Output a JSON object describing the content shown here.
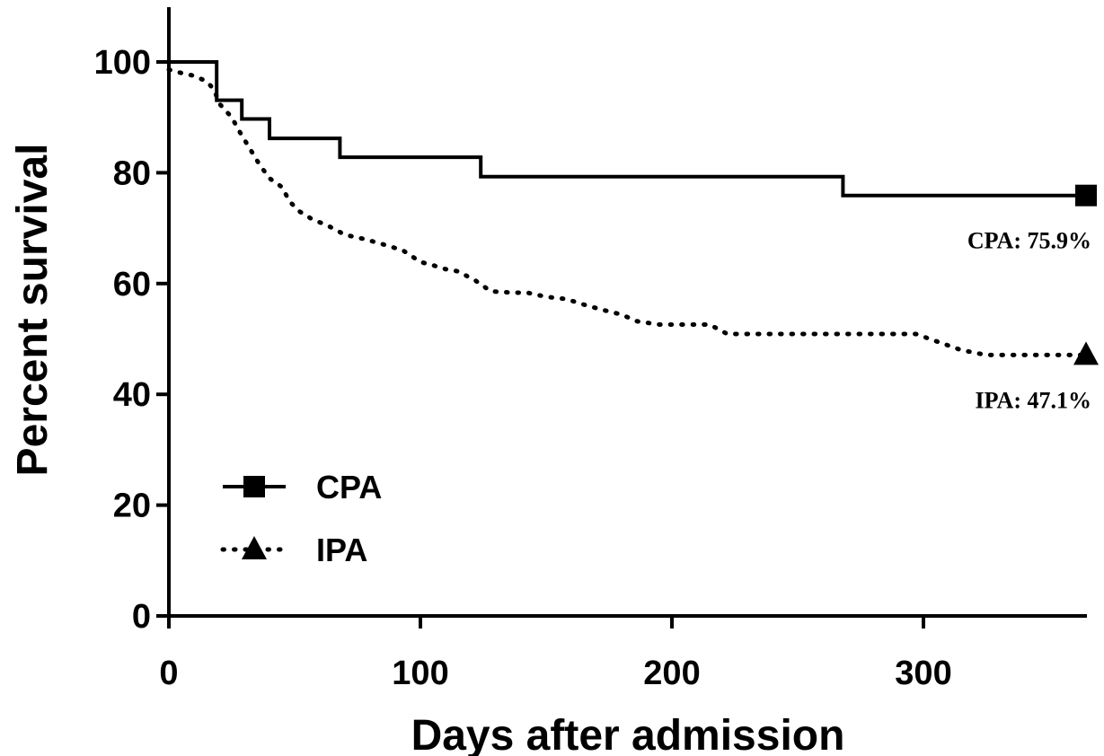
{
  "chart_data": {
    "type": "line",
    "title": "",
    "xlabel": "Days after admission",
    "ylabel": "Percent survival",
    "xlim": [
      0,
      365
    ],
    "ylim": [
      0,
      100
    ],
    "x_ticks": [
      0,
      100,
      200,
      300
    ],
    "y_ticks": [
      0,
      20,
      40,
      60,
      80,
      100
    ],
    "grid": false,
    "legend_position": "bottom-left",
    "series": [
      {
        "name": "CPA",
        "line_style": "solid",
        "marker": "square",
        "x": [
          0,
          17,
          19,
          29,
          40,
          68,
          124,
          268,
          365
        ],
        "y": [
          100,
          100,
          93.1,
          89.7,
          86.2,
          82.8,
          79.3,
          75.9,
          75.9
        ],
        "end_label": "CPA: 75.9%"
      },
      {
        "name": "IPA",
        "line_style": "dotted",
        "marker": "triangle",
        "x": [
          0,
          5,
          10,
          15,
          18,
          20,
          25,
          28,
          32,
          36,
          40,
          45,
          48,
          52,
          57,
          63,
          70,
          78,
          85,
          93,
          100,
          105,
          110,
          115,
          122,
          128,
          135,
          143,
          150,
          158,
          165,
          172,
          180,
          186,
          195,
          205,
          215,
          222,
          260,
          297,
          305,
          315,
          325,
          365
        ],
        "y": [
          98.6,
          98,
          97.5,
          96.5,
          95,
          92.5,
          90,
          87.5,
          84.5,
          81.5,
          79,
          77.4,
          74.8,
          73,
          71.6,
          70.5,
          68.8,
          68,
          67.1,
          66,
          63.9,
          63.3,
          62.6,
          62.2,
          60.5,
          58.6,
          58.4,
          58.3,
          57.6,
          57.2,
          56.2,
          55.3,
          54.4,
          53.2,
          52.6,
          52.6,
          52.6,
          50.9,
          50.9,
          50.9,
          49.6,
          48,
          47.1,
          47.1
        ],
        "end_label": "IPA: 47.1%"
      }
    ]
  }
}
